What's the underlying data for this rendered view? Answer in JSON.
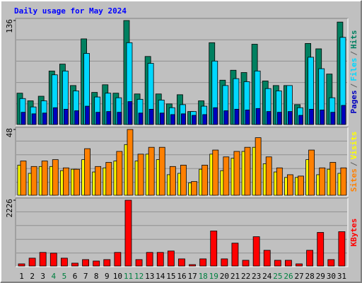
{
  "chart_data": [
    {
      "type": "bar",
      "title": "Daily usage for May 2024",
      "ylim": [
        0,
        136
      ],
      "yticks": [
        136
      ],
      "legend_separator": "/",
      "series": [
        {
          "name": "Hits",
          "color": "#008060",
          "values": [
            41,
            31,
            37,
            70,
            79,
            51,
            112,
            42,
            52,
            41,
            136,
            40,
            89,
            40,
            27,
            39,
            17,
            31,
            107,
            58,
            71,
            68,
            105,
            57,
            51,
            51,
            26,
            106,
            99,
            66,
            134
          ]
        },
        {
          "name": "Files",
          "color": "#00D8FF",
          "values": [
            34,
            23,
            31,
            65,
            70,
            44,
            93,
            36,
            41,
            35,
            107,
            33,
            80,
            32,
            22,
            26,
            17,
            24,
            83,
            51,
            60,
            56,
            70,
            47,
            44,
            51,
            22,
            88,
            73,
            35,
            114
          ]
        },
        {
          "name": "Pages",
          "color": "#0000C0",
          "values": [
            16,
            14,
            15,
            22,
            20,
            18,
            24,
            16,
            17,
            16,
            30,
            15,
            20,
            15,
            13,
            14,
            12,
            13,
            22,
            18,
            20,
            19,
            21,
            17,
            16,
            17,
            12,
            20,
            19,
            16,
            25
          ]
        }
      ]
    },
    {
      "type": "bar",
      "ylim": [
        0,
        48
      ],
      "yticks": [
        48
      ],
      "legend_separator": "/",
      "series": [
        {
          "name": "Visits",
          "color": "#FFFF00",
          "values": [
            22,
            16,
            21,
            21,
            18,
            19,
            26,
            17,
            20,
            25,
            37,
            25,
            30,
            26,
            15,
            16,
            9,
            19,
            30,
            18,
            27,
            32,
            35,
            23,
            17,
            13,
            13,
            26,
            15,
            19,
            16
          ]
        },
        {
          "name": "Sites",
          "color": "#FF8000",
          "values": [
            25,
            21,
            25,
            26,
            20,
            19,
            34,
            21,
            24,
            32,
            48,
            30,
            35,
            35,
            21,
            22,
            10,
            22,
            33,
            28,
            32,
            35,
            42,
            28,
            20,
            15,
            14,
            33,
            20,
            24,
            20
          ]
        }
      ]
    },
    {
      "type": "bar",
      "ylim": [
        0,
        2226
      ],
      "yticks": [
        2226
      ],
      "categories": [
        "1",
        "2",
        "3",
        "4",
        "5",
        "6",
        "7",
        "8",
        "9",
        "10",
        "11",
        "12",
        "13",
        "14",
        "15",
        "16",
        "17",
        "18",
        "19",
        "20",
        "21",
        "22",
        "23",
        "24",
        "25",
        "26",
        "27",
        "28",
        "29",
        "30",
        "31"
      ],
      "highlight": [
        "4",
        "5",
        "11",
        "12",
        "18",
        "19",
        "25",
        "26"
      ],
      "highlight_color": "#008040",
      "series": [
        {
          "name": "KBytes",
          "color": "#FF0000",
          "values": [
            73,
            266,
            460,
            436,
            266,
            97,
            218,
            169,
            218,
            460,
            2226,
            218,
            460,
            460,
            508,
            242,
            48,
            242,
            1186,
            242,
            774,
            194,
            992,
            532,
            194,
            194,
            73,
            532,
            1137,
            218,
            1162
          ]
        }
      ]
    }
  ]
}
